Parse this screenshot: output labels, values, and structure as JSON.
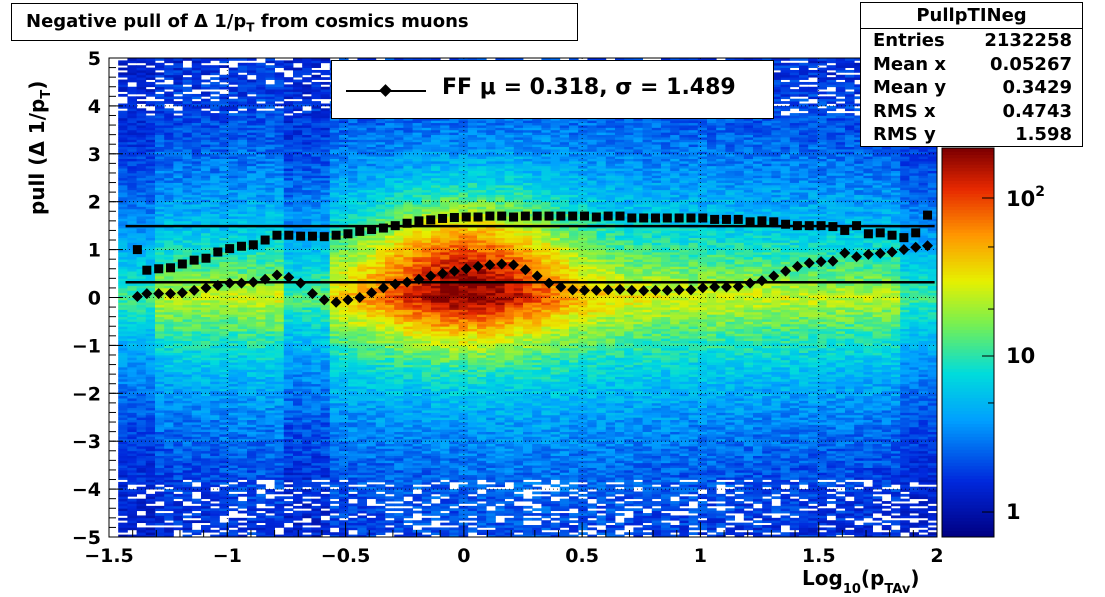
{
  "title": {
    "prefix": "Negative pull of Δ 1/p",
    "sub": "T",
    "suffix": " from cosmics muons"
  },
  "stats": {
    "name": "PullpTINeg",
    "rows": [
      {
        "label": "Entries",
        "value": "2132258"
      },
      {
        "label": "Mean x",
        "value": "0.05267"
      },
      {
        "label": "Mean y",
        "value": "0.3429"
      },
      {
        "label": "RMS x",
        "value": "0.4743"
      },
      {
        "label": "RMS y",
        "value": "1.598"
      }
    ]
  },
  "legend": {
    "text": "FF μ =  0.318, σ =   1.489"
  },
  "colors": {
    "marker": "#000000",
    "frame": "#000000"
  },
  "chart_data": {
    "type": "heatmap",
    "title": "Negative pull of Δ 1/pT from cosmics muons",
    "xlabel": {
      "main": "Log",
      "sub1": "10",
      "mid": "(p",
      "sub2": "TAv",
      "end": ")"
    },
    "ylabel": {
      "main": "pull (Δ 1/p",
      "sub": "T",
      "end": ")"
    },
    "xlim": [
      -1.5,
      2
    ],
    "ylim": [
      -5,
      5
    ],
    "xticks": [
      "−1.5",
      "−1",
      "−0.5",
      "0",
      "0.5",
      "1",
      "1.5",
      "2"
    ],
    "yticks": [
      "−5",
      "−4",
      "−3",
      "−2",
      "−1",
      "0",
      "1",
      "2",
      "3",
      "4",
      "5"
    ],
    "grid": true,
    "log_z": true,
    "z_labels": [
      "1",
      "10",
      "10^2"
    ],
    "fit_lines": {
      "mean": 0.318,
      "sigma": 1.489
    },
    "series": [
      {
        "marker": "square",
        "x": [
          -1.38,
          -1.34,
          -1.29,
          -1.24,
          -1.19,
          -1.14,
          -1.09,
          -1.04,
          -0.99,
          -0.94,
          -0.89,
          -0.84,
          -0.79,
          -0.74,
          -0.69,
          -0.64,
          -0.59,
          -0.54,
          -0.49,
          -0.44,
          -0.39,
          -0.34,
          -0.29,
          -0.24,
          -0.19,
          -0.14,
          -0.09,
          -0.04,
          0.01,
          0.06,
          0.11,
          0.16,
          0.21,
          0.26,
          0.31,
          0.36,
          0.41,
          0.46,
          0.51,
          0.56,
          0.61,
          0.66,
          0.71,
          0.76,
          0.81,
          0.86,
          0.91,
          0.96,
          1.01,
          1.06,
          1.11,
          1.16,
          1.21,
          1.26,
          1.31,
          1.36,
          1.41,
          1.46,
          1.51,
          1.56,
          1.61,
          1.66,
          1.71,
          1.76,
          1.81,
          1.86,
          1.91,
          1.96
        ],
        "values": [
          1.0,
          0.57,
          0.6,
          0.62,
          0.7,
          0.78,
          0.82,
          0.95,
          1.02,
          1.07,
          1.1,
          1.2,
          1.3,
          1.3,
          1.28,
          1.28,
          1.27,
          1.3,
          1.33,
          1.38,
          1.42,
          1.45,
          1.5,
          1.55,
          1.6,
          1.62,
          1.65,
          1.67,
          1.68,
          1.68,
          1.7,
          1.7,
          1.68,
          1.7,
          1.7,
          1.7,
          1.7,
          1.7,
          1.7,
          1.68,
          1.7,
          1.7,
          1.66,
          1.66,
          1.66,
          1.66,
          1.66,
          1.66,
          1.66,
          1.63,
          1.63,
          1.63,
          1.58,
          1.6,
          1.58,
          1.53,
          1.5,
          1.5,
          1.5,
          1.48,
          1.4,
          1.5,
          1.33,
          1.35,
          1.3,
          1.25,
          1.35,
          1.72
        ]
      },
      {
        "marker": "diamond",
        "x": [
          -1.38,
          -1.34,
          -1.29,
          -1.24,
          -1.19,
          -1.14,
          -1.09,
          -1.04,
          -0.99,
          -0.94,
          -0.89,
          -0.84,
          -0.79,
          -0.74,
          -0.69,
          -0.64,
          -0.59,
          -0.54,
          -0.49,
          -0.44,
          -0.39,
          -0.34,
          -0.29,
          -0.24,
          -0.19,
          -0.14,
          -0.09,
          -0.04,
          0.01,
          0.06,
          0.11,
          0.16,
          0.21,
          0.26,
          0.31,
          0.36,
          0.41,
          0.46,
          0.51,
          0.56,
          0.61,
          0.66,
          0.71,
          0.76,
          0.81,
          0.86,
          0.91,
          0.96,
          1.01,
          1.06,
          1.11,
          1.16,
          1.21,
          1.26,
          1.31,
          1.36,
          1.41,
          1.46,
          1.51,
          1.56,
          1.61,
          1.66,
          1.71,
          1.76,
          1.81,
          1.86,
          1.91,
          1.96
        ],
        "values": [
          0.02,
          0.08,
          0.08,
          0.08,
          0.1,
          0.15,
          0.2,
          0.25,
          0.3,
          0.3,
          0.32,
          0.38,
          0.47,
          0.42,
          0.3,
          0.08,
          -0.05,
          -0.1,
          -0.05,
          0.0,
          0.1,
          0.2,
          0.28,
          0.32,
          0.38,
          0.45,
          0.5,
          0.55,
          0.6,
          0.65,
          0.68,
          0.7,
          0.68,
          0.58,
          0.45,
          0.3,
          0.22,
          0.16,
          0.15,
          0.15,
          0.16,
          0.17,
          0.15,
          0.14,
          0.15,
          0.15,
          0.16,
          0.16,
          0.2,
          0.22,
          0.22,
          0.23,
          0.3,
          0.35,
          0.45,
          0.55,
          0.65,
          0.72,
          0.75,
          0.76,
          0.93,
          0.85,
          0.9,
          0.92,
          0.95,
          1.0,
          1.05,
          1.08
        ]
      }
    ]
  }
}
